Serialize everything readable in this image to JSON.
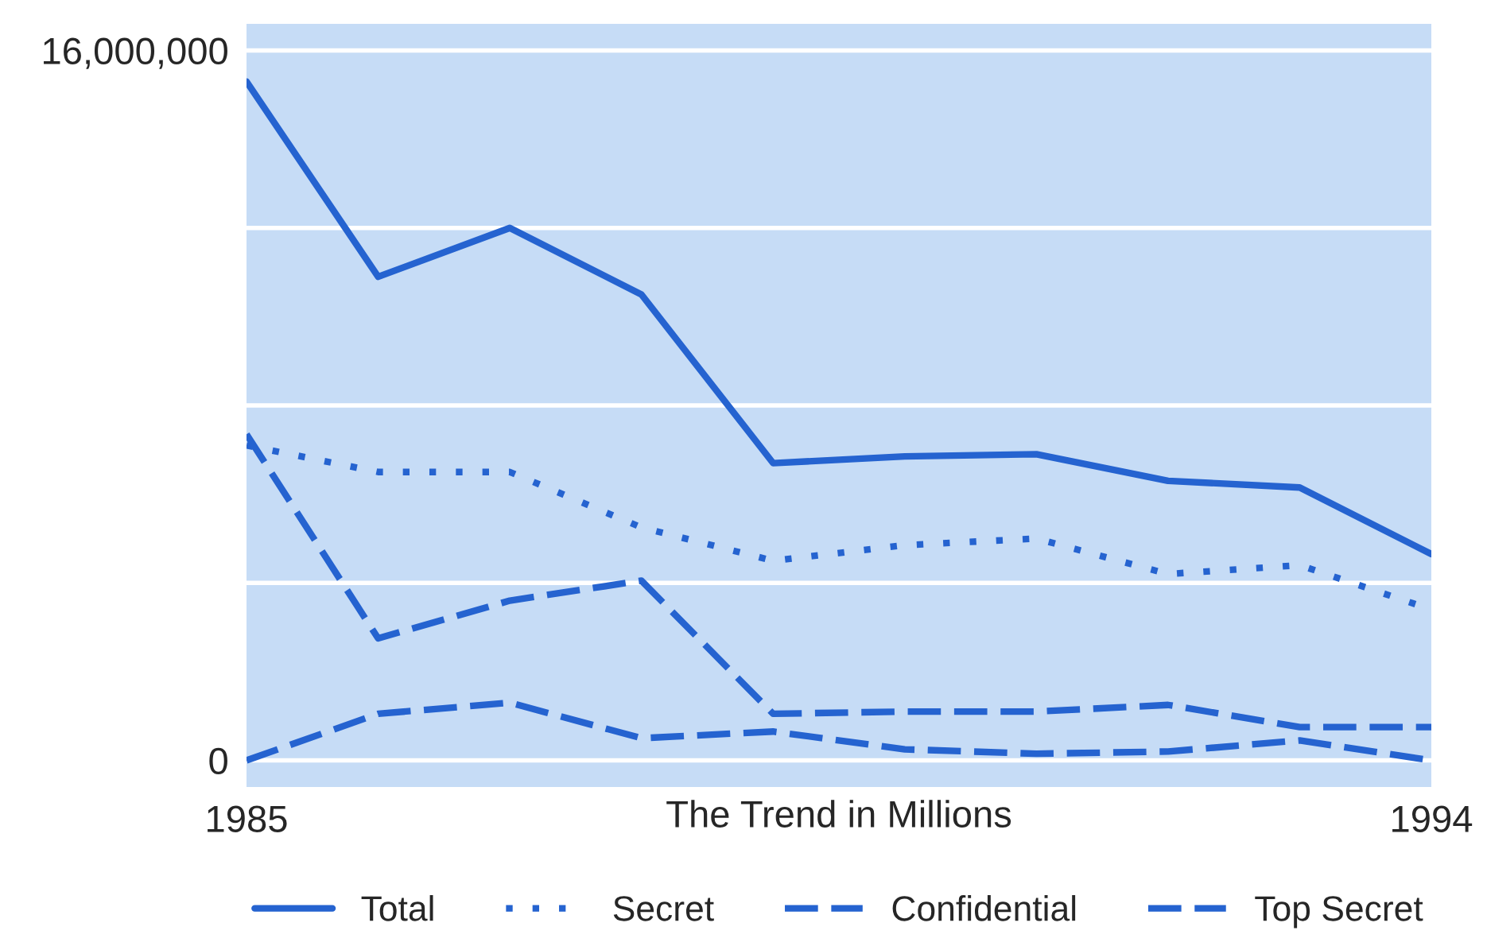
{
  "chart_data": {
    "type": "line",
    "xlabel": "The Trend in Millions",
    "x": [
      1985,
      1986,
      1987,
      1988,
      1989,
      1990,
      1991,
      1992,
      1993,
      1994
    ],
    "xlim": [
      1985,
      1994
    ],
    "xticks": [
      1985,
      1994
    ],
    "ylim": [
      -600000,
      16600000
    ],
    "yticks": [
      {
        "value": 0,
        "label": "0"
      },
      {
        "value": 4000000,
        "label": null
      },
      {
        "value": 8000000,
        "label": null
      },
      {
        "value": 12000000,
        "label": null
      },
      {
        "value": 16000000,
        "label": "16,000,000"
      }
    ],
    "grid": "y",
    "legend": "bottom",
    "marker": "none",
    "series": [
      {
        "name": "Total",
        "color": "#2563d0",
        "line_style": "solid",
        "values": [
          15300000,
          10900000,
          12000000,
          10500000,
          6700000,
          6850000,
          6900000,
          6300000,
          6150000,
          4650000
        ]
      },
      {
        "name": "Secret",
        "color": "#2563d0",
        "line_style": "dotted",
        "values": [
          7100000,
          6500000,
          6500000,
          5250000,
          4500000,
          4850000,
          5000000,
          4200000,
          4400000,
          3400000
        ]
      },
      {
        "name": "Confidential",
        "color": "#2563d0",
        "line_style": "dashed",
        "values": [
          7350000,
          2750000,
          3600000,
          4050000,
          1050000,
          1100000,
          1100000,
          1250000,
          750000,
          750000
        ]
      },
      {
        "name": "Top Secret",
        "color": "#2563d0",
        "line_style": "dashed",
        "values": [
          0,
          1050000,
          1300000,
          500000,
          650000,
          250000,
          150000,
          200000,
          450000,
          0
        ]
      }
    ]
  }
}
